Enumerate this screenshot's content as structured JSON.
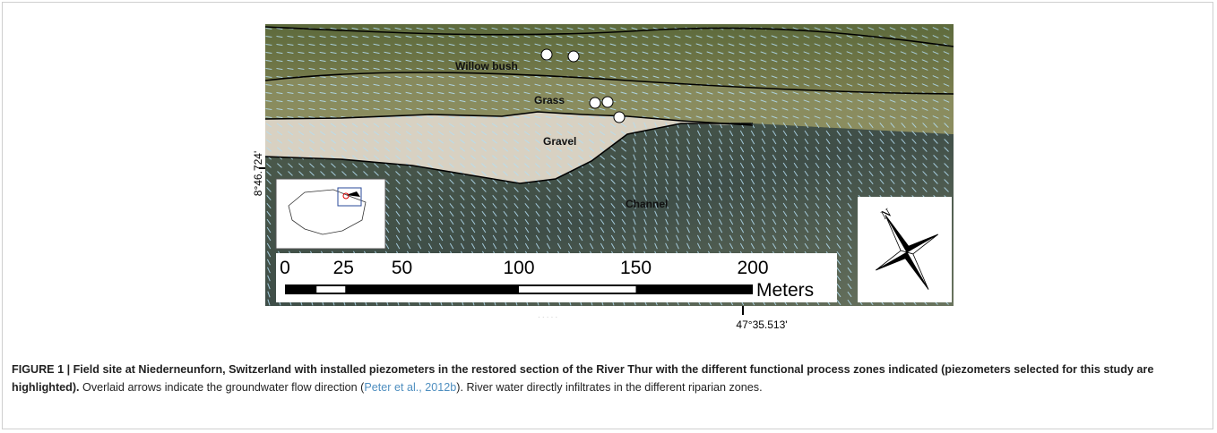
{
  "figure": {
    "zones": [
      "Willow bush",
      "Grass",
      "Gravel",
      "Channel"
    ],
    "latitude_label": "8°46.724'",
    "longitude_label": "47°35.513'",
    "scale_bar": {
      "ticks": [
        0,
        25,
        50,
        100,
        150,
        200
      ],
      "unit": "Meters"
    },
    "compass": "N"
  },
  "caption": {
    "bold": "FIGURE 1 | Field site at Niederneunforn, Switzerland with installed piezometers in the restored section of the River Thur with the different functional process zones indicated (piezometers selected for this study are highlighted).",
    "text_before": " Overlaid arrows indicate the groundwater flow direction (",
    "citation": "Peter et al., 2012b",
    "text_after": "). River water directly infiltrates in the different riparian zones."
  }
}
